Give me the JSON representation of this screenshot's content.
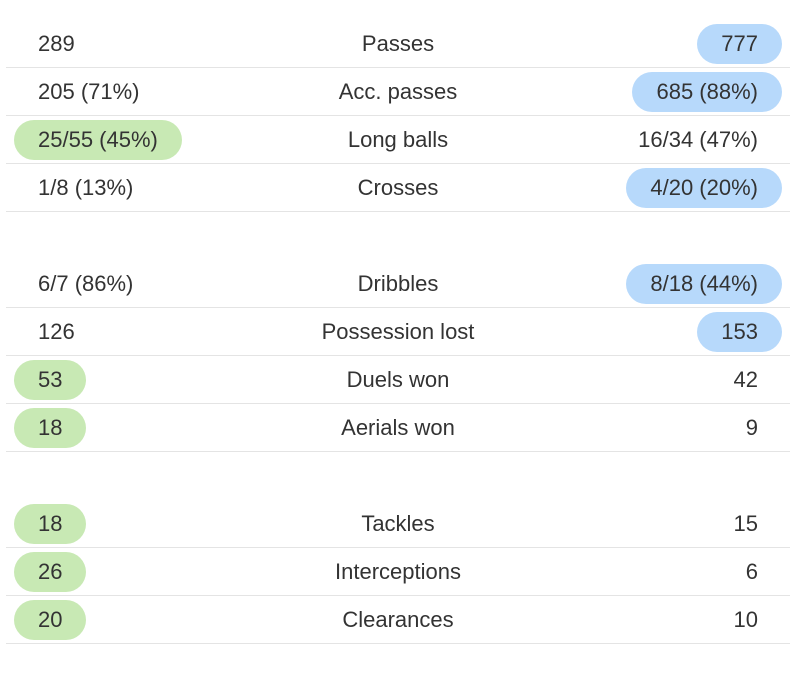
{
  "groups": [
    {
      "rows": [
        {
          "label": "Passes",
          "home": "289",
          "away": "777",
          "winner": "away"
        },
        {
          "label": "Acc. passes",
          "home": "205 (71%)",
          "away": "685 (88%)",
          "winner": "away"
        },
        {
          "label": "Long balls",
          "home": "25/55 (45%)",
          "away": "16/34 (47%)",
          "winner": "home"
        },
        {
          "label": "Crosses",
          "home": "1/8 (13%)",
          "away": "4/20 (20%)",
          "winner": "away"
        }
      ]
    },
    {
      "rows": [
        {
          "label": "Dribbles",
          "home": "6/7 (86%)",
          "away": "8/18 (44%)",
          "winner": "away"
        },
        {
          "label": "Possession lost",
          "home": "126",
          "away": "153",
          "winner": "away"
        },
        {
          "label": "Duels won",
          "home": "53",
          "away": "42",
          "winner": "home"
        },
        {
          "label": "Aerials won",
          "home": "18",
          "away": "9",
          "winner": "home"
        }
      ]
    },
    {
      "rows": [
        {
          "label": "Tackles",
          "home": "18",
          "away": "15",
          "winner": "home"
        },
        {
          "label": "Interceptions",
          "home": "26",
          "away": "6",
          "winner": "home"
        },
        {
          "label": "Clearances",
          "home": "20",
          "away": "10",
          "winner": "home"
        }
      ]
    }
  ],
  "colors": {
    "home_highlight": "#c8e9b4",
    "away_highlight": "#b7d9fb",
    "text": "#333333",
    "divider": "#e4e4e4"
  }
}
